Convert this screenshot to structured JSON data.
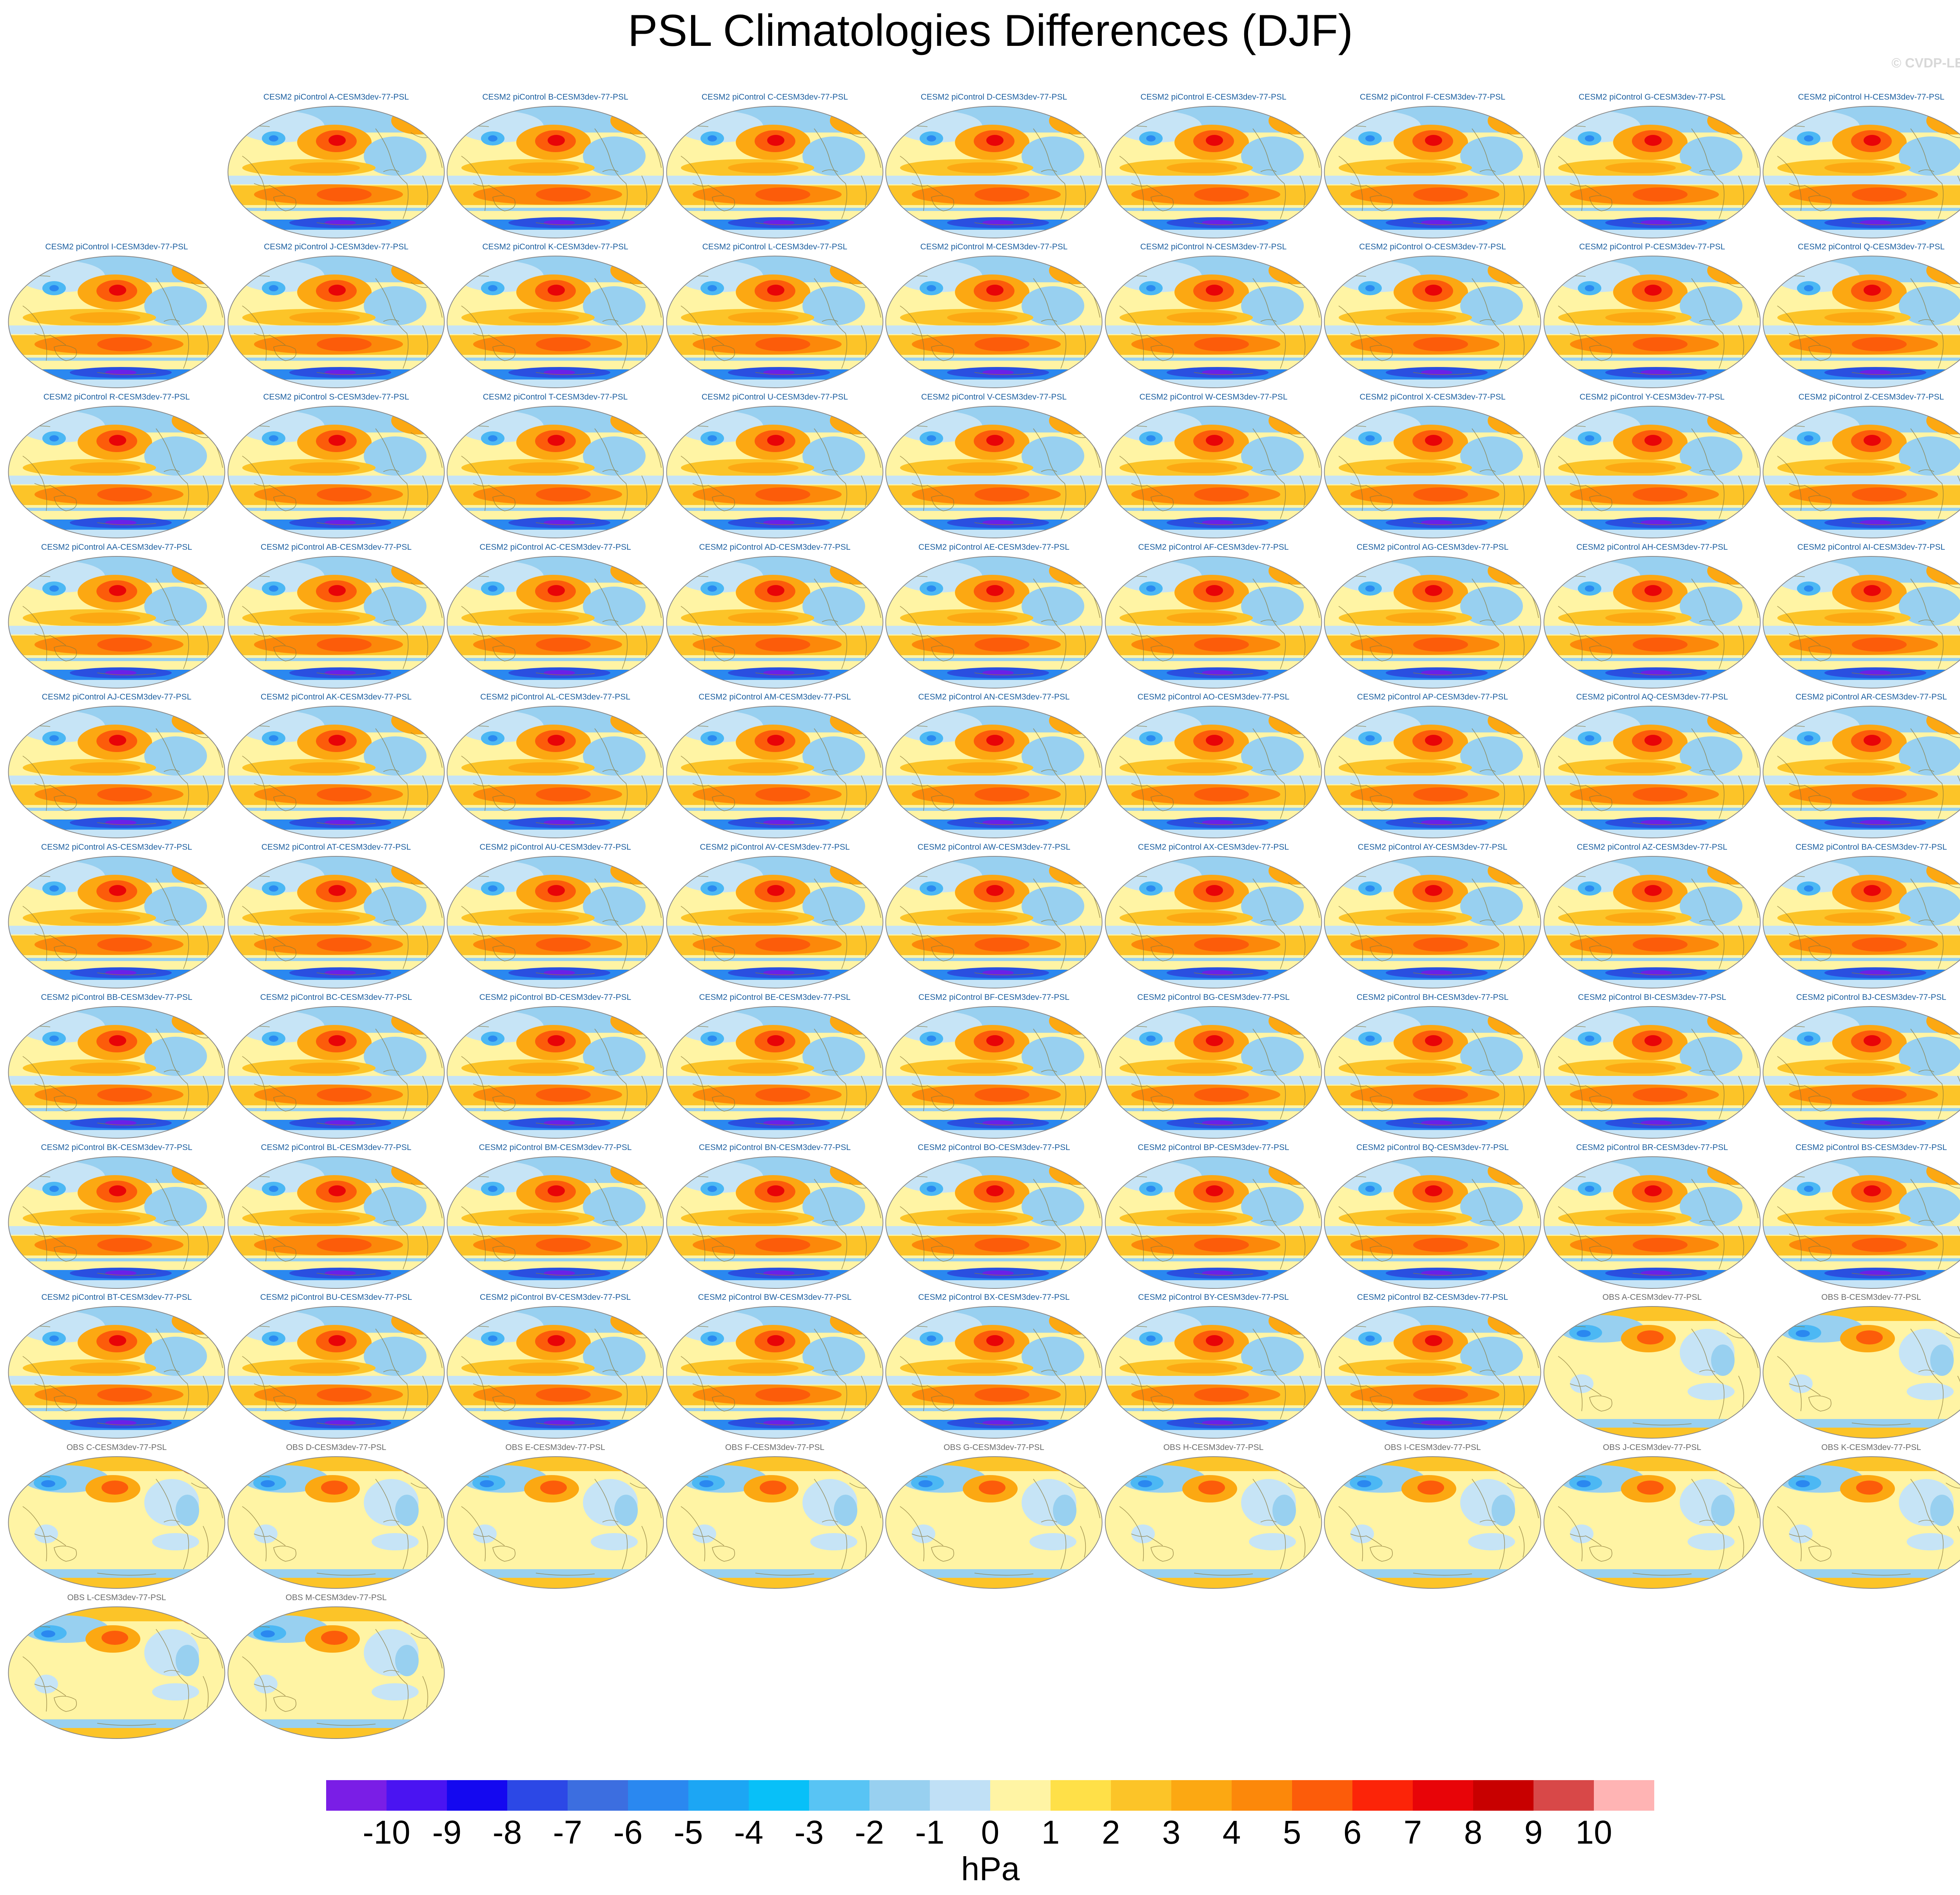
{
  "title": "PSL Climatologies Differences (DJF)",
  "credit": "© CVDP-LE",
  "units": "hPa",
  "colorbar": {
    "colors": [
      "#7a1ee6",
      "#4a14f2",
      "#1408f0",
      "#2c48e6",
      "#3c6ee0",
      "#2a88f0",
      "#1ca6f4",
      "#08c0f8",
      "#58c4f4",
      "#98d0f0",
      "#c0e0f6",
      "#fff4a4",
      "#ffe048",
      "#fcc428",
      "#fca812",
      "#fc880a",
      "#fc5c0a",
      "#fc2408",
      "#e80408",
      "#c80000",
      "#d84848",
      "#ffb4b4"
    ],
    "tick_labels": [
      "-10",
      "-9",
      "-8",
      "-7",
      "-6",
      "-5",
      "-4",
      "-3",
      "-2",
      "-1",
      "0",
      "1",
      "2",
      "3",
      "4",
      "5",
      "6",
      "7",
      "8",
      "9",
      "10"
    ]
  },
  "panel_titles": [
    "CESM2 piControl A-CESM3dev-77-PSL",
    "CESM2 piControl B-CESM3dev-77-PSL",
    "CESM2 piControl C-CESM3dev-77-PSL",
    "CESM2 piControl D-CESM3dev-77-PSL",
    "CESM2 piControl E-CESM3dev-77-PSL",
    "CESM2 piControl F-CESM3dev-77-PSL",
    "CESM2 piControl G-CESM3dev-77-PSL",
    "CESM2 piControl H-CESM3dev-77-PSL",
    "CESM2 piControl I-CESM3dev-77-PSL",
    "CESM2 piControl J-CESM3dev-77-PSL",
    "CESM2 piControl K-CESM3dev-77-PSL",
    "CESM2 piControl L-CESM3dev-77-PSL",
    "CESM2 piControl M-CESM3dev-77-PSL",
    "CESM2 piControl N-CESM3dev-77-PSL",
    "CESM2 piControl O-CESM3dev-77-PSL",
    "CESM2 piControl P-CESM3dev-77-PSL",
    "CESM2 piControl Q-CESM3dev-77-PSL",
    "CESM2 piControl R-CESM3dev-77-PSL",
    "CESM2 piControl S-CESM3dev-77-PSL",
    "CESM2 piControl T-CESM3dev-77-PSL",
    "CESM2 piControl U-CESM3dev-77-PSL",
    "CESM2 piControl V-CESM3dev-77-PSL",
    "CESM2 piControl W-CESM3dev-77-PSL",
    "CESM2 piControl X-CESM3dev-77-PSL",
    "CESM2 piControl Y-CESM3dev-77-PSL",
    "CESM2 piControl Z-CESM3dev-77-PSL",
    "CESM2 piControl AA-CESM3dev-77-PSL",
    "CESM2 piControl AB-CESM3dev-77-PSL",
    "CESM2 piControl AC-CESM3dev-77-PSL",
    "CESM2 piControl AD-CESM3dev-77-PSL",
    "CESM2 piControl AE-CESM3dev-77-PSL",
    "CESM2 piControl AF-CESM3dev-77-PSL",
    "CESM2 piControl AG-CESM3dev-77-PSL",
    "CESM2 piControl AH-CESM3dev-77-PSL",
    "CESM2 piControl AI-CESM3dev-77-PSL",
    "CESM2 piControl AJ-CESM3dev-77-PSL",
    "CESM2 piControl AK-CESM3dev-77-PSL",
    "CESM2 piControl AL-CESM3dev-77-PSL",
    "CESM2 piControl AM-CESM3dev-77-PSL",
    "CESM2 piControl AN-CESM3dev-77-PSL",
    "CESM2 piControl AO-CESM3dev-77-PSL",
    "CESM2 piControl AP-CESM3dev-77-PSL",
    "CESM2 piControl AQ-CESM3dev-77-PSL",
    "CESM2 piControl AR-CESM3dev-77-PSL",
    "CESM2 piControl AS-CESM3dev-77-PSL",
    "CESM2 piControl AT-CESM3dev-77-PSL",
    "CESM2 piControl AU-CESM3dev-77-PSL",
    "CESM2 piControl AV-CESM3dev-77-PSL",
    "CESM2 piControl AW-CESM3dev-77-PSL",
    "CESM2 piControl AX-CESM3dev-77-PSL",
    "CESM2 piControl AY-CESM3dev-77-PSL",
    "CESM2 piControl AZ-CESM3dev-77-PSL",
    "CESM2 piControl BA-CESM3dev-77-PSL",
    "CESM2 piControl BB-CESM3dev-77-PSL",
    "CESM2 piControl BC-CESM3dev-77-PSL",
    "CESM2 piControl BD-CESM3dev-77-PSL",
    "CESM2 piControl BE-CESM3dev-77-PSL",
    "CESM2 piControl BF-CESM3dev-77-PSL",
    "CESM2 piControl BG-CESM3dev-77-PSL",
    "CESM2 piControl BH-CESM3dev-77-PSL",
    "CESM2 piControl BI-CESM3dev-77-PSL",
    "CESM2 piControl BJ-CESM3dev-77-PSL",
    "CESM2 piControl BK-CESM3dev-77-PSL",
    "CESM2 piControl BL-CESM3dev-77-PSL",
    "CESM2 piControl BM-CESM3dev-77-PSL",
    "CESM2 piControl BN-CESM3dev-77-PSL",
    "CESM2 piControl BO-CESM3dev-77-PSL",
    "CESM2 piControl BP-CESM3dev-77-PSL",
    "CESM2 piControl BQ-CESM3dev-77-PSL",
    "CESM2 piControl BR-CESM3dev-77-PSL",
    "CESM2 piControl BS-CESM3dev-77-PSL",
    "CESM2 piControl BT-CESM3dev-77-PSL",
    "CESM2 piControl BU-CESM3dev-77-PSL",
    "CESM2 piControl BV-CESM3dev-77-PSL",
    "CESM2 piControl BW-CESM3dev-77-PSL",
    "CESM2 piControl BX-CESM3dev-77-PSL",
    "CESM2 piControl BY-CESM3dev-77-PSL",
    "CESM2 piControl BZ-CESM3dev-77-PSL",
    "OBS A-CESM3dev-77-PSL",
    "OBS B-CESM3dev-77-PSL",
    "OBS C-CESM3dev-77-PSL",
    "OBS D-CESM3dev-77-PSL",
    "OBS E-CESM3dev-77-PSL",
    "OBS F-CESM3dev-77-PSL",
    "OBS G-CESM3dev-77-PSL",
    "OBS H-CESM3dev-77-PSL",
    "OBS I-CESM3dev-77-PSL",
    "OBS J-CESM3dev-77-PSL",
    "OBS K-CESM3dev-77-PSL",
    "OBS L-CESM3dev-77-PSL",
    "OBS M-CESM3dev-77-PSL"
  ]
}
